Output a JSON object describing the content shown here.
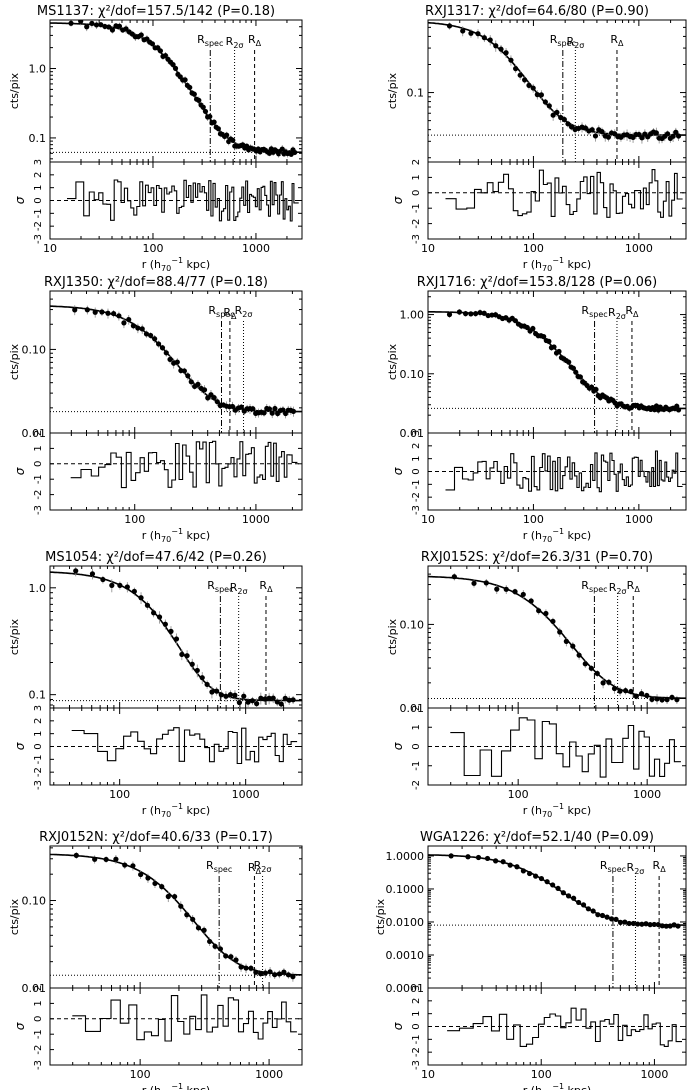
{
  "figure": {
    "ylabel": "cts/pix",
    "xlabel_prefix": "r (h",
    "xlabel_suffix": " kpc)",
    "residual_label": "σ"
  },
  "chart_data": [
    {
      "type": "scatter",
      "title": "MS1137: χ²/dof=157.5/142 (P=0.18)",
      "xscale": "log",
      "yscale": "log",
      "xlim": [
        10,
        2800
      ],
      "ylim": [
        0.045,
        5
      ],
      "xticks": [
        10,
        100,
        1000
      ],
      "xticklabels": [
        "10",
        "100",
        "1000"
      ],
      "yticks": [
        0.1,
        1.0
      ],
      "yticklabels": [
        "0.1",
        "1.0"
      ],
      "markers": [
        {
          "label": "Rspec",
          "x": 360,
          "style": "dashdot"
        },
        {
          "label": "R2σ",
          "x": 620,
          "style": "dotted"
        },
        {
          "label": "RΔ",
          "x": 970,
          "style": "dashed"
        }
      ],
      "background": 0.062,
      "rc": 130,
      "beta": 0.72,
      "s0": 4.5,
      "seed": 1,
      "npts": 90,
      "res_ylim": [
        -3,
        3
      ],
      "res_ticks": [
        3,
        2,
        1,
        0,
        -1,
        -2,
        -3
      ]
    },
    {
      "type": "scatter",
      "title": "RXJ1317: χ²/dof=64.6/80 (P=0.90)",
      "xscale": "log",
      "yscale": "log",
      "xlim": [
        10,
        2800
      ],
      "ylim": [
        0.018,
        0.6
      ],
      "xticks": [
        10,
        100,
        1000
      ],
      "xticklabels": [
        "10",
        "100",
        "1000"
      ],
      "yticks": [
        0.1
      ],
      "yticklabels": [
        "0.1"
      ],
      "markers": [
        {
          "label": "Rspec",
          "x": 190,
          "style": "dashdot"
        },
        {
          "label": "R2σ",
          "x": 250,
          "style": "dotted"
        },
        {
          "label": "RΔ",
          "x": 620,
          "style": "dashed"
        }
      ],
      "background": 0.035,
      "rc": 55,
      "beta": 0.62,
      "s0": 0.55,
      "seed": 2,
      "npts": 60,
      "res_ylim": [
        -3,
        2
      ],
      "res_ticks": [
        2,
        1,
        0,
        -1,
        -2,
        -3
      ]
    },
    {
      "type": "scatter",
      "title": "RXJ1350: χ²/dof=88.4/77 (P=0.18)",
      "xscale": "log",
      "yscale": "log",
      "xlim": [
        20,
        2400
      ],
      "ylim": [
        0.01,
        0.5
      ],
      "xticks": [
        100,
        1000
      ],
      "xticklabels": [
        "100",
        "1000"
      ],
      "yticks": [
        0.01,
        0.1
      ],
      "yticklabels": [
        "0.01",
        "0.10"
      ],
      "markers": [
        {
          "label": "Rspec",
          "x": 520,
          "style": "dashdot"
        },
        {
          "label": "RΔ",
          "x": 610,
          "style": "dashed"
        },
        {
          "label": "R2σ",
          "x": 790,
          "style": "dotted"
        }
      ],
      "background": 0.018,
      "rc": 160,
      "beta": 0.75,
      "s0": 0.32,
      "seed": 3,
      "npts": 60,
      "res_ylim": [
        -3,
        2
      ],
      "res_ticks": [
        2,
        1,
        0,
        -1,
        -2,
        -3
      ]
    },
    {
      "type": "scatter",
      "title": "RXJ1716: χ²/dof=153.8/128 (P=0.06)",
      "xscale": "log",
      "yscale": "log",
      "xlim": [
        10,
        2800
      ],
      "ylim": [
        0.01,
        2.5
      ],
      "xticks": [
        10,
        100,
        1000
      ],
      "xticklabels": [
        "10",
        "100",
        "1000"
      ],
      "yticks": [
        0.01,
        0.1,
        1.0
      ],
      "yticklabels": [
        "0.01",
        "0.10",
        "1.00"
      ],
      "markers": [
        {
          "label": "Rspec",
          "x": 380,
          "style": "dashdot"
        },
        {
          "label": "R2σ",
          "x": 620,
          "style": "dotted"
        },
        {
          "label": "RΔ",
          "x": 860,
          "style": "dashed"
        }
      ],
      "background": 0.026,
      "rc": 130,
      "beta": 0.72,
      "s0": 1.1,
      "seed": 4,
      "npts": 90,
      "res_ylim": [
        -3,
        3
      ],
      "res_ticks": [
        3,
        2,
        1,
        0,
        -1,
        -2,
        -3
      ]
    },
    {
      "type": "scatter",
      "title": "MS1054: χ²/dof=47.6/42 (P=0.26)",
      "xscale": "log",
      "yscale": "log",
      "xlim": [
        28,
        2800
      ],
      "ylim": [
        0.075,
        1.6
      ],
      "xticks": [
        100,
        1000
      ],
      "xticklabels": [
        "100",
        "1000"
      ],
      "yticks": [
        0.1,
        1.0
      ],
      "yticklabels": [
        "0.1",
        "1.0"
      ],
      "markers": [
        {
          "label": "Rspec",
          "x": 630,
          "style": "dashdot"
        },
        {
          "label": "R2σ",
          "x": 880,
          "style": "dotted"
        },
        {
          "label": "RΔ",
          "x": 1450,
          "style": "dashed"
        }
      ],
      "background": 0.088,
      "rc": 260,
      "beta": 0.95,
      "s0": 1.35,
      "seed": 5,
      "npts": 40,
      "res_ylim": [
        -3,
        3
      ],
      "res_ticks": [
        3,
        2,
        1,
        0,
        -1,
        -2,
        -3
      ]
    },
    {
      "type": "scatter",
      "title": "RXJ0152S: χ²/dof=26.3/31 (P=0.70)",
      "xscale": "log",
      "yscale": "log",
      "xlim": [
        20,
        2000
      ],
      "ylim": [
        0.01,
        0.5
      ],
      "xticks": [
        100,
        1000
      ],
      "xticklabels": [
        "100",
        "1000"
      ],
      "yticks": [
        0.01,
        0.1
      ],
      "yticklabels": [
        "0.01",
        "0.10"
      ],
      "markers": [
        {
          "label": "Rspec",
          "x": 390,
          "style": "dashdot"
        },
        {
          "label": "R2σ",
          "x": 590,
          "style": "dotted"
        },
        {
          "label": "RΔ",
          "x": 780,
          "style": "dashed"
        }
      ],
      "background": 0.013,
      "rc": 160,
      "beta": 0.72,
      "s0": 0.37,
      "seed": 6,
      "npts": 33,
      "res_ylim": [
        -2,
        2
      ],
      "res_ticks": [
        2,
        1,
        0,
        -1,
        -2
      ]
    },
    {
      "type": "scatter",
      "title": "RXJ0152N: χ²/dof=40.6/33 (P=0.17)",
      "xscale": "log",
      "yscale": "log",
      "xlim": [
        20,
        1800
      ],
      "ylim": [
        0.01,
        0.42
      ],
      "xticks": [
        100,
        1000
      ],
      "xticklabels": [
        "100",
        "1000"
      ],
      "yticks": [
        0.01,
        0.1
      ],
      "yticklabels": [
        "0.01",
        "0.10"
      ],
      "markers": [
        {
          "label": "Rspec",
          "x": 410,
          "style": "dashdot"
        },
        {
          "label": "RΔ",
          "x": 770,
          "style": "dashed"
        },
        {
          "label": "R2σ",
          "x": 890,
          "style": "dotted"
        }
      ],
      "background": 0.014,
      "rc": 170,
      "beta": 0.72,
      "s0": 0.33,
      "seed": 7,
      "npts": 35,
      "res_ylim": [
        -3,
        2
      ],
      "res_ticks": [
        2,
        1,
        0,
        -1,
        -2,
        -3
      ]
    },
    {
      "type": "scatter",
      "title": "WGA1226: χ²/dof=52.1/40 (P=0.09)",
      "xscale": "log",
      "yscale": "log",
      "xlim": [
        10,
        1900
      ],
      "ylim": [
        0.0001,
        2
      ],
      "xticks": [
        10,
        100,
        1000
      ],
      "xticklabels": [
        "10",
        "100",
        "1000"
      ],
      "yticks": [
        0.0001,
        0.001,
        0.01,
        0.1,
        1.0
      ],
      "yticklabels": [
        "0.0001",
        "0.0010",
        "0.0100",
        "0.1000",
        "1.0000"
      ],
      "markers": [
        {
          "label": "Rspec",
          "x": 430,
          "style": "dashdot"
        },
        {
          "label": "R2σ",
          "x": 680,
          "style": "dotted"
        },
        {
          "label": "RΔ",
          "x": 1100,
          "style": "dashed"
        }
      ],
      "background": 0.008,
      "rc": 70,
      "beta": 0.68,
      "s0": 1.1,
      "seed": 8,
      "npts": 42,
      "res_ylim": [
        -3,
        3
      ],
      "res_ticks": [
        3,
        2,
        1,
        0,
        -1,
        -2,
        -3
      ]
    }
  ]
}
